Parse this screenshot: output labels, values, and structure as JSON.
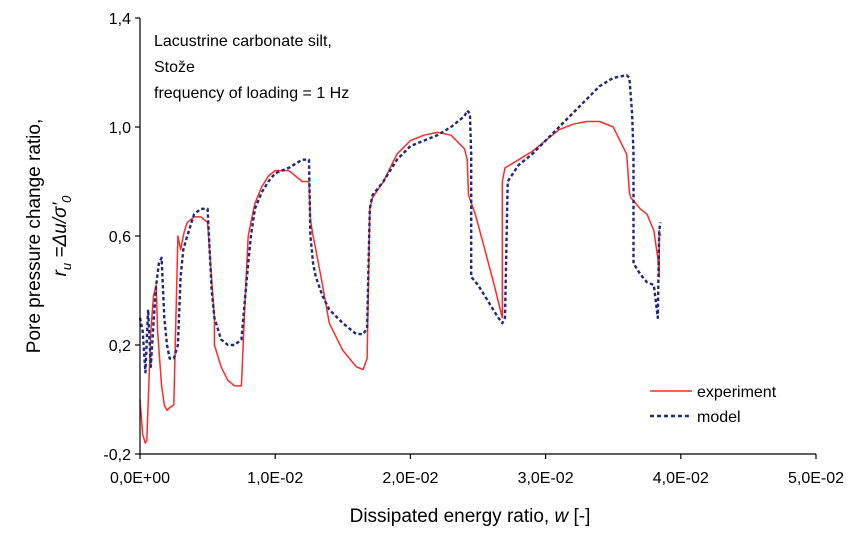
{
  "chart_data": {
    "type": "line",
    "xlabel": "Dissipated energy ratio,",
    "xlabel_symbol": "w",
    "xlabel_unit": "[-]",
    "ylabel_line1": "Pore pressure change ratio,",
    "ylabel_line2": "r",
    "ylabel_sub": "u",
    "ylabel_eq": " =Δu/σ'",
    "ylabel_sub0": "0",
    "xlim": [
      0,
      0.05
    ],
    "ylim": [
      -0.2,
      1.4
    ],
    "x_ticks": [
      {
        "value": 0.0,
        "label": "0,0E+00"
      },
      {
        "value": 0.01,
        "label": "1,0E-02"
      },
      {
        "value": 0.02,
        "label": "2,0E-02"
      },
      {
        "value": 0.03,
        "label": "3,0E-02"
      },
      {
        "value": 0.04,
        "label": "4,0E-02"
      },
      {
        "value": 0.05,
        "label": "5,0E-02"
      }
    ],
    "y_ticks": [
      {
        "value": -0.2,
        "label": "-0,2"
      },
      {
        "value": 0.2,
        "label": "0,2"
      },
      {
        "value": 0.6,
        "label": "0,6"
      },
      {
        "value": 1.0,
        "label": "1,0"
      },
      {
        "value": 1.4,
        "label": "1,4"
      }
    ],
    "annotation_lines": [
      "Lacustrine carbonate silt,",
      "Stože",
      "frequency of loading = 1 Hz"
    ],
    "legend_position": "bottom-right",
    "grid": false,
    "series": [
      {
        "name": "experiment",
        "color": "#ff2a2a",
        "style": "solid",
        "x": [
          0.0,
          0.0002,
          0.0004,
          0.0005,
          0.0008,
          0.001,
          0.0012,
          0.0013,
          0.0016,
          0.0018,
          0.002,
          0.0022,
          0.0025,
          0.0028,
          0.003,
          0.0032,
          0.0033,
          0.0035,
          0.004,
          0.0045,
          0.005,
          0.0055,
          0.0055,
          0.006,
          0.0065,
          0.007,
          0.0075,
          0.0078,
          0.008,
          0.0082,
          0.0085,
          0.009,
          0.0095,
          0.01,
          0.011,
          0.012,
          0.0125,
          0.0126,
          0.0128,
          0.013,
          0.0135,
          0.014,
          0.015,
          0.016,
          0.0165,
          0.0168,
          0.017,
          0.0172,
          0.018,
          0.019,
          0.02,
          0.021,
          0.022,
          0.023,
          0.024,
          0.0242,
          0.0243,
          0.0248,
          0.0255,
          0.0262,
          0.0268,
          0.0268,
          0.027,
          0.028,
          0.029,
          0.03,
          0.031,
          0.032,
          0.033,
          0.034,
          0.035,
          0.036,
          0.0362,
          0.0363,
          0.0365,
          0.037,
          0.0375,
          0.038,
          0.0383,
          0.0384,
          0.0384,
          0.0385
        ],
        "y": [
          0.0,
          -0.13,
          -0.16,
          -0.15,
          0.25,
          0.38,
          0.42,
          0.25,
          0.05,
          -0.02,
          -0.04,
          -0.03,
          -0.02,
          0.6,
          0.55,
          0.6,
          0.62,
          0.65,
          0.67,
          0.67,
          0.65,
          0.3,
          0.2,
          0.12,
          0.07,
          0.05,
          0.05,
          0.4,
          0.6,
          0.65,
          0.72,
          0.78,
          0.82,
          0.84,
          0.84,
          0.8,
          0.8,
          0.66,
          0.6,
          0.55,
          0.42,
          0.28,
          0.18,
          0.12,
          0.11,
          0.15,
          0.7,
          0.74,
          0.8,
          0.9,
          0.95,
          0.97,
          0.98,
          0.97,
          0.92,
          0.88,
          0.75,
          0.68,
          0.55,
          0.42,
          0.3,
          0.8,
          0.85,
          0.88,
          0.91,
          0.95,
          0.99,
          1.01,
          1.02,
          1.02,
          1.0,
          0.9,
          0.76,
          0.74,
          0.73,
          0.7,
          0.68,
          0.62,
          0.52,
          0.45,
          0.62,
          0.6
        ]
      },
      {
        "name": "model",
        "color": "#1e2a7a",
        "style": "dashed",
        "x": [
          0.0,
          0.0002,
          0.0004,
          0.0006,
          0.0008,
          0.001,
          0.0012,
          0.0014,
          0.0016,
          0.0018,
          0.002,
          0.0022,
          0.0025,
          0.0028,
          0.003,
          0.0032,
          0.0035,
          0.004,
          0.0045,
          0.005,
          0.0052,
          0.0053,
          0.0055,
          0.006,
          0.0065,
          0.007,
          0.0075,
          0.008,
          0.0082,
          0.0085,
          0.009,
          0.0095,
          0.01,
          0.011,
          0.012,
          0.0125,
          0.0126,
          0.0128,
          0.013,
          0.0135,
          0.014,
          0.015,
          0.016,
          0.0165,
          0.0168,
          0.017,
          0.0172,
          0.018,
          0.019,
          0.02,
          0.021,
          0.022,
          0.023,
          0.024,
          0.0242,
          0.0244,
          0.0245,
          0.0245,
          0.025,
          0.0255,
          0.026,
          0.0265,
          0.0268,
          0.027,
          0.0272,
          0.028,
          0.029,
          0.03,
          0.031,
          0.032,
          0.033,
          0.034,
          0.035,
          0.036,
          0.0362,
          0.0364,
          0.0365,
          0.0365,
          0.037,
          0.0375,
          0.038,
          0.0383,
          0.0384,
          0.0385
        ],
        "y": [
          0.3,
          0.25,
          0.1,
          0.33,
          0.12,
          0.28,
          0.42,
          0.5,
          0.52,
          0.3,
          0.2,
          0.15,
          0.15,
          0.2,
          0.45,
          0.55,
          0.6,
          0.68,
          0.7,
          0.7,
          0.5,
          0.4,
          0.3,
          0.22,
          0.2,
          0.2,
          0.22,
          0.5,
          0.6,
          0.7,
          0.76,
          0.8,
          0.83,
          0.85,
          0.88,
          0.88,
          0.6,
          0.5,
          0.45,
          0.38,
          0.33,
          0.28,
          0.24,
          0.24,
          0.26,
          0.7,
          0.75,
          0.8,
          0.88,
          0.93,
          0.95,
          0.97,
          1.0,
          1.04,
          1.06,
          1.05,
          0.9,
          0.45,
          0.42,
          0.38,
          0.34,
          0.3,
          0.28,
          0.3,
          0.8,
          0.86,
          0.9,
          0.95,
          1.0,
          1.05,
          1.1,
          1.15,
          1.18,
          1.19,
          1.18,
          1.05,
          0.9,
          0.5,
          0.46,
          0.43,
          0.42,
          0.3,
          0.62,
          0.65
        ]
      }
    ]
  }
}
